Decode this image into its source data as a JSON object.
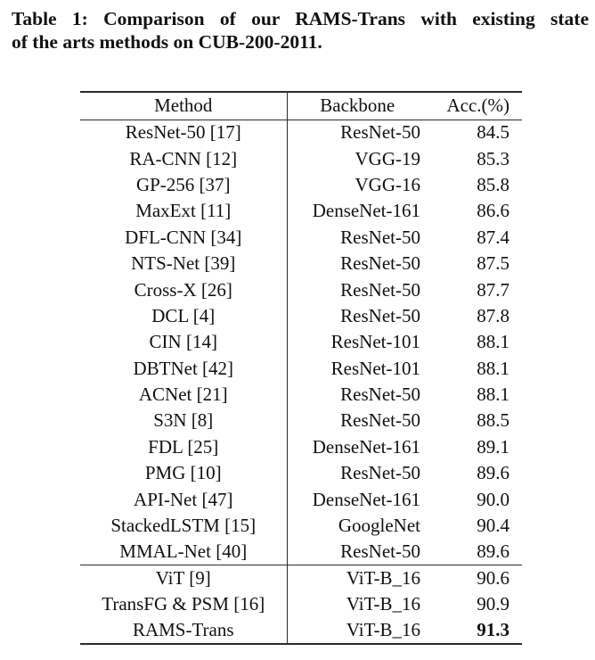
{
  "caption": {
    "line1": "Table 1: Comparison of our RAMS-Trans with existing state",
    "line2": "of the arts methods on CUB-200-2011."
  },
  "table": {
    "headers": {
      "method": "Method",
      "backbone": "Backbone",
      "acc": "Acc.(%)"
    },
    "rows": [
      {
        "method": "ResNet-50 [17]",
        "backbone": "ResNet-50",
        "acc": "84.5"
      },
      {
        "method": "RA-CNN [12]",
        "backbone": "VGG-19",
        "acc": "85.3"
      },
      {
        "method": "GP-256 [37]",
        "backbone": "VGG-16",
        "acc": "85.8"
      },
      {
        "method": "MaxExt [11]",
        "backbone": "DenseNet-161",
        "acc": "86.6"
      },
      {
        "method": "DFL-CNN [34]",
        "backbone": "ResNet-50",
        "acc": "87.4"
      },
      {
        "method": "NTS-Net [39]",
        "backbone": "ResNet-50",
        "acc": "87.5"
      },
      {
        "method": "Cross-X [26]",
        "backbone": "ResNet-50",
        "acc": "87.7"
      },
      {
        "method": "DCL [4]",
        "backbone": "ResNet-50",
        "acc": "87.8"
      },
      {
        "method": "CIN [14]",
        "backbone": "ResNet-101",
        "acc": "88.1"
      },
      {
        "method": "DBTNet [42]",
        "backbone": "ResNet-101",
        "acc": "88.1"
      },
      {
        "method": "ACNet [21]",
        "backbone": "ResNet-50",
        "acc": "88.1"
      },
      {
        "method": "S3N [8]",
        "backbone": "ResNet-50",
        "acc": "88.5"
      },
      {
        "method": "FDL [25]",
        "backbone": "DenseNet-161",
        "acc": "89.1"
      },
      {
        "method": "PMG [10]",
        "backbone": "ResNet-50",
        "acc": "89.6"
      },
      {
        "method": "API-Net [47]",
        "backbone": "DenseNet-161",
        "acc": "90.0"
      },
      {
        "method": "StackedLSTM [15]",
        "backbone": "GoogleNet",
        "acc": "90.4"
      },
      {
        "method": "MMAL-Net [40]",
        "backbone": "ResNet-50",
        "acc": "89.6"
      },
      {
        "method": "ViT [9]",
        "backbone": "ViT-B_16",
        "acc": "90.6"
      },
      {
        "method": "TransFG & PSM [16]",
        "backbone": "ViT-B_16",
        "acc": "90.9"
      },
      {
        "method": "RAMS-Trans",
        "backbone": "ViT-B_16",
        "acc": "91.3"
      }
    ]
  },
  "colors": {
    "text": "#111111",
    "rule": "#2b2b2b",
    "background": "#ffffff"
  }
}
